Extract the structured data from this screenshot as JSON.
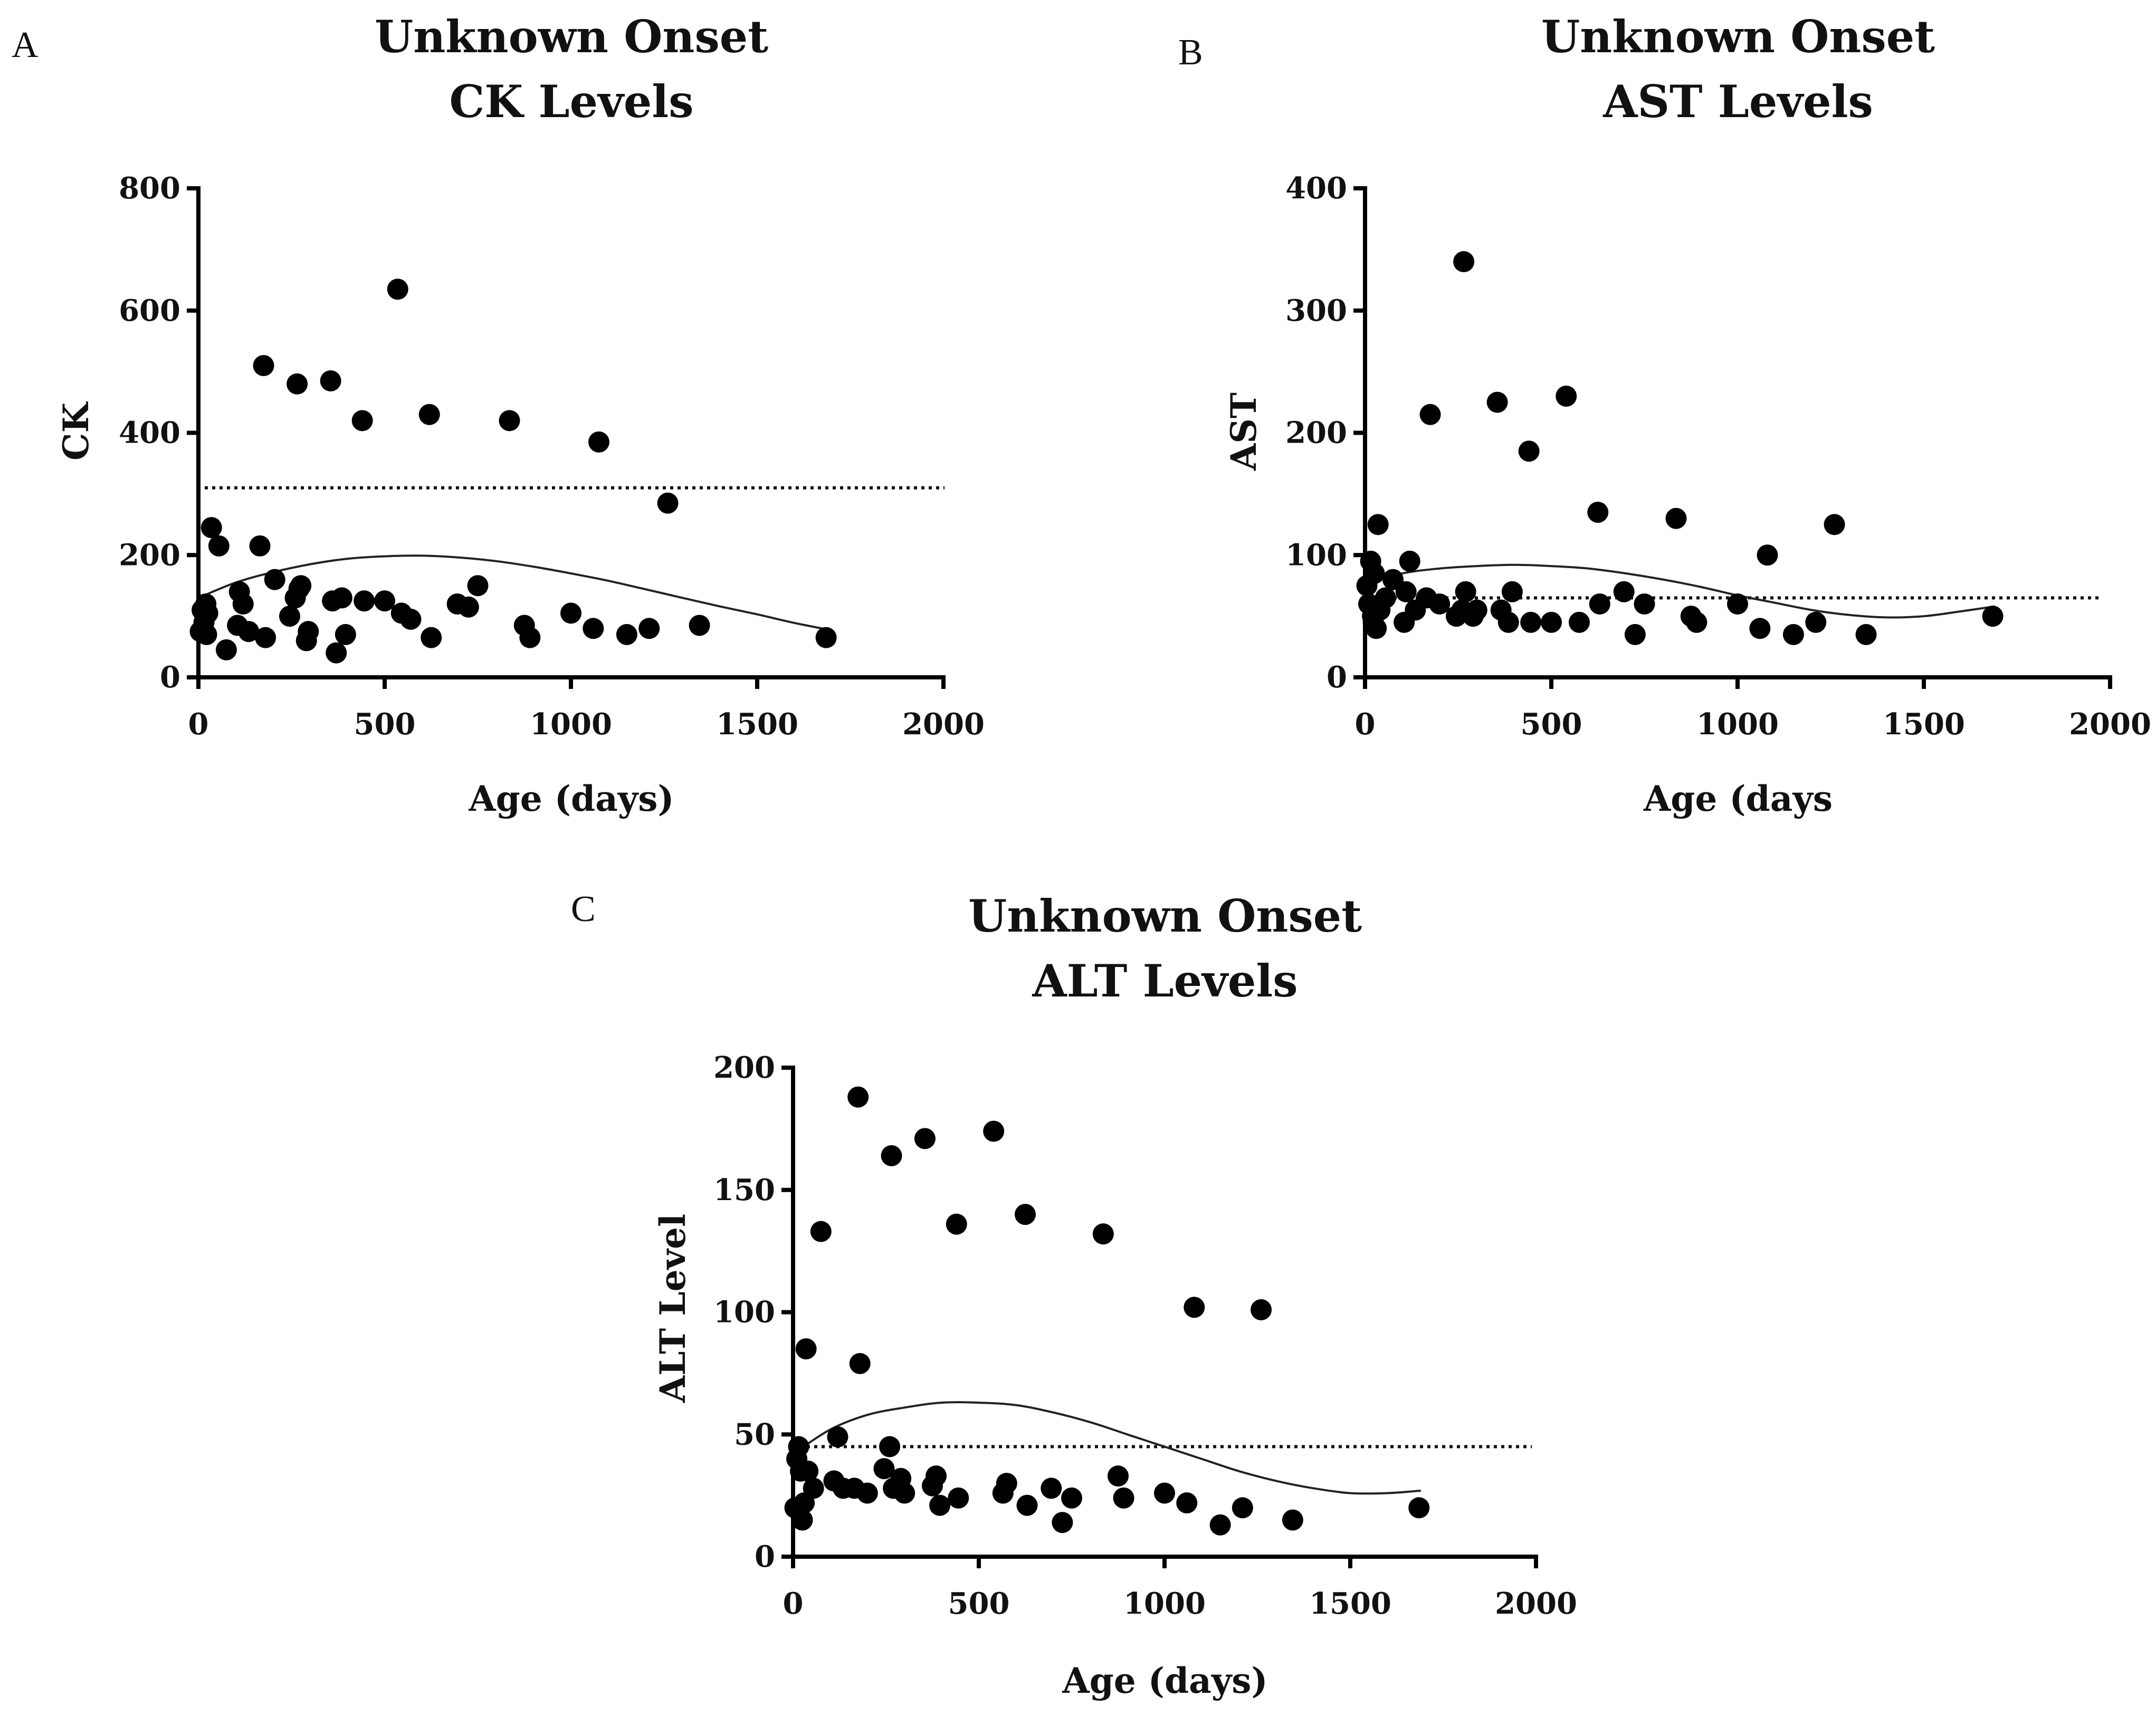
{
  "chart_data": [
    {
      "panel": "A",
      "type": "scatter",
      "title": [
        "Unknown Onset",
        "CK Levels"
      ],
      "xlabel": "Age (days)",
      "ylabel": "CK",
      "xlim": [
        0,
        2000
      ],
      "ylim": [
        0,
        800
      ],
      "xticks": [
        0,
        500,
        1000,
        1500,
        2000
      ],
      "yticks": [
        0,
        200,
        400,
        600,
        800
      ],
      "reference_line": 310,
      "fit_curve": {
        "x": [
          0,
          100,
          200,
          300,
          400,
          500,
          600,
          700,
          800,
          900,
          1000,
          1100,
          1200,
          1300,
          1400,
          1500,
          1600,
          1690
        ],
        "y": [
          130,
          155,
          172,
          185,
          194,
          198,
          199,
          196,
          190,
          181,
          170,
          158,
          144,
          130,
          116,
          103,
          89,
          78
        ]
      },
      "points": [
        {
          "x": 5,
          "y": 75
        },
        {
          "x": 10,
          "y": 110
        },
        {
          "x": 15,
          "y": 90
        },
        {
          "x": 20,
          "y": 120
        },
        {
          "x": 22,
          "y": 70
        },
        {
          "x": 25,
          "y": 105
        },
        {
          "x": 35,
          "y": 245
        },
        {
          "x": 55,
          "y": 215
        },
        {
          "x": 75,
          "y": 45
        },
        {
          "x": 105,
          "y": 85
        },
        {
          "x": 110,
          "y": 140
        },
        {
          "x": 120,
          "y": 120
        },
        {
          "x": 135,
          "y": 75
        },
        {
          "x": 165,
          "y": 215
        },
        {
          "x": 175,
          "y": 510
        },
        {
          "x": 180,
          "y": 65
        },
        {
          "x": 205,
          "y": 160
        },
        {
          "x": 245,
          "y": 100
        },
        {
          "x": 260,
          "y": 130
        },
        {
          "x": 265,
          "y": 480
        },
        {
          "x": 270,
          "y": 145
        },
        {
          "x": 275,
          "y": 150
        },
        {
          "x": 290,
          "y": 60
        },
        {
          "x": 295,
          "y": 75
        },
        {
          "x": 355,
          "y": 485
        },
        {
          "x": 360,
          "y": 125
        },
        {
          "x": 370,
          "y": 40
        },
        {
          "x": 385,
          "y": 130
        },
        {
          "x": 395,
          "y": 70
        },
        {
          "x": 440,
          "y": 420
        },
        {
          "x": 445,
          "y": 125
        },
        {
          "x": 500,
          "y": 125
        },
        {
          "x": 535,
          "y": 635
        },
        {
          "x": 545,
          "y": 105
        },
        {
          "x": 570,
          "y": 95
        },
        {
          "x": 620,
          "y": 430
        },
        {
          "x": 625,
          "y": 65
        },
        {
          "x": 695,
          "y": 120
        },
        {
          "x": 725,
          "y": 115
        },
        {
          "x": 750,
          "y": 150
        },
        {
          "x": 835,
          "y": 420
        },
        {
          "x": 875,
          "y": 85
        },
        {
          "x": 890,
          "y": 65
        },
        {
          "x": 1000,
          "y": 105
        },
        {
          "x": 1060,
          "y": 80
        },
        {
          "x": 1075,
          "y": 385
        },
        {
          "x": 1150,
          "y": 70
        },
        {
          "x": 1210,
          "y": 80
        },
        {
          "x": 1260,
          "y": 285
        },
        {
          "x": 1345,
          "y": 85
        },
        {
          "x": 1685,
          "y": 65
        }
      ]
    },
    {
      "panel": "B",
      "type": "scatter",
      "title": [
        "Unknown Onset",
        "AST Levels"
      ],
      "xlabel": "Age (days",
      "ylabel": "AST",
      "xlim": [
        0,
        2000
      ],
      "ylim": [
        0,
        400
      ],
      "xticks": [
        0,
        500,
        1000,
        1500,
        2000
      ],
      "yticks": [
        0,
        100,
        200,
        300,
        400
      ],
      "reference_line": 65,
      "fit_curve": {
        "x": [
          0,
          100,
          200,
          300,
          400,
          500,
          600,
          700,
          800,
          900,
          1000,
          1100,
          1200,
          1300,
          1400,
          1500,
          1600,
          1690
        ],
        "y": [
          76,
          85,
          89,
          91,
          92,
          91,
          89,
          85,
          80,
          74,
          67,
          61,
          55,
          51,
          49,
          50,
          54,
          58
        ]
      },
      "points": [
        {
          "x": 5,
          "y": 75
        },
        {
          "x": 10,
          "y": 60
        },
        {
          "x": 15,
          "y": 95
        },
        {
          "x": 20,
          "y": 50
        },
        {
          "x": 22,
          "y": 45
        },
        {
          "x": 25,
          "y": 85
        },
        {
          "x": 30,
          "y": 40
        },
        {
          "x": 35,
          "y": 125
        },
        {
          "x": 40,
          "y": 55
        },
        {
          "x": 55,
          "y": 65
        },
        {
          "x": 75,
          "y": 80
        },
        {
          "x": 105,
          "y": 45
        },
        {
          "x": 110,
          "y": 70
        },
        {
          "x": 120,
          "y": 95
        },
        {
          "x": 135,
          "y": 55
        },
        {
          "x": 165,
          "y": 65
        },
        {
          "x": 175,
          "y": 215
        },
        {
          "x": 200,
          "y": 60
        },
        {
          "x": 245,
          "y": 50
        },
        {
          "x": 260,
          "y": 55
        },
        {
          "x": 265,
          "y": 340
        },
        {
          "x": 270,
          "y": 70
        },
        {
          "x": 290,
          "y": 50
        },
        {
          "x": 300,
          "y": 55
        },
        {
          "x": 355,
          "y": 225
        },
        {
          "x": 365,
          "y": 55
        },
        {
          "x": 385,
          "y": 45
        },
        {
          "x": 395,
          "y": 70
        },
        {
          "x": 440,
          "y": 185
        },
        {
          "x": 445,
          "y": 45
        },
        {
          "x": 500,
          "y": 45
        },
        {
          "x": 540,
          "y": 230
        },
        {
          "x": 575,
          "y": 45
        },
        {
          "x": 625,
          "y": 135
        },
        {
          "x": 630,
          "y": 60
        },
        {
          "x": 695,
          "y": 70
        },
        {
          "x": 725,
          "y": 35
        },
        {
          "x": 750,
          "y": 60
        },
        {
          "x": 835,
          "y": 130
        },
        {
          "x": 875,
          "y": 50
        },
        {
          "x": 890,
          "y": 45
        },
        {
          "x": 1000,
          "y": 60
        },
        {
          "x": 1060,
          "y": 40
        },
        {
          "x": 1080,
          "y": 100
        },
        {
          "x": 1150,
          "y": 35
        },
        {
          "x": 1210,
          "y": 45
        },
        {
          "x": 1260,
          "y": 125
        },
        {
          "x": 1345,
          "y": 35
        },
        {
          "x": 1685,
          "y": 50
        }
      ]
    },
    {
      "panel": "C",
      "type": "scatter",
      "title": [
        "Unknown Onset",
        "ALT Levels"
      ],
      "xlabel": "Age (days)",
      "ylabel": "ALT Level",
      "xlim": [
        0,
        2000
      ],
      "ylim": [
        0,
        200
      ],
      "xticks": [
        0,
        500,
        1000,
        1500,
        2000
      ],
      "yticks": [
        0,
        50,
        100,
        150,
        200
      ],
      "reference_line": 45,
      "fit_curve": {
        "x": [
          0,
          100,
          200,
          300,
          400,
          500,
          600,
          700,
          800,
          900,
          1000,
          1100,
          1200,
          1300,
          1400,
          1500,
          1600,
          1690
        ],
        "y": [
          42,
          52,
          58,
          61,
          63,
          63,
          62,
          59,
          55,
          50,
          45,
          40,
          35,
          31,
          28,
          26,
          26,
          27
        ]
      },
      "points": [
        {
          "x": 5,
          "y": 20
        },
        {
          "x": 10,
          "y": 40
        },
        {
          "x": 15,
          "y": 45
        },
        {
          "x": 20,
          "y": 35
        },
        {
          "x": 25,
          "y": 15
        },
        {
          "x": 30,
          "y": 22
        },
        {
          "x": 35,
          "y": 85
        },
        {
          "x": 40,
          "y": 35
        },
        {
          "x": 55,
          "y": 28
        },
        {
          "x": 75,
          "y": 133
        },
        {
          "x": 110,
          "y": 31
        },
        {
          "x": 120,
          "y": 49
        },
        {
          "x": 135,
          "y": 28
        },
        {
          "x": 165,
          "y": 28
        },
        {
          "x": 175,
          "y": 188
        },
        {
          "x": 180,
          "y": 79
        },
        {
          "x": 200,
          "y": 26
        },
        {
          "x": 245,
          "y": 36
        },
        {
          "x": 260,
          "y": 45
        },
        {
          "x": 265,
          "y": 164
        },
        {
          "x": 270,
          "y": 28
        },
        {
          "x": 290,
          "y": 32
        },
        {
          "x": 300,
          "y": 26
        },
        {
          "x": 355,
          "y": 171
        },
        {
          "x": 375,
          "y": 29
        },
        {
          "x": 385,
          "y": 33
        },
        {
          "x": 395,
          "y": 21
        },
        {
          "x": 440,
          "y": 136
        },
        {
          "x": 445,
          "y": 24
        },
        {
          "x": 540,
          "y": 174
        },
        {
          "x": 565,
          "y": 26
        },
        {
          "x": 575,
          "y": 30
        },
        {
          "x": 625,
          "y": 140
        },
        {
          "x": 630,
          "y": 21
        },
        {
          "x": 695,
          "y": 28
        },
        {
          "x": 725,
          "y": 14
        },
        {
          "x": 750,
          "y": 24
        },
        {
          "x": 835,
          "y": 132
        },
        {
          "x": 875,
          "y": 33
        },
        {
          "x": 890,
          "y": 24
        },
        {
          "x": 1000,
          "y": 26
        },
        {
          "x": 1060,
          "y": 22
        },
        {
          "x": 1080,
          "y": 102
        },
        {
          "x": 1150,
          "y": 13
        },
        {
          "x": 1210,
          "y": 20
        },
        {
          "x": 1260,
          "y": 101
        },
        {
          "x": 1345,
          "y": 15
        },
        {
          "x": 1685,
          "y": 20
        }
      ]
    }
  ]
}
